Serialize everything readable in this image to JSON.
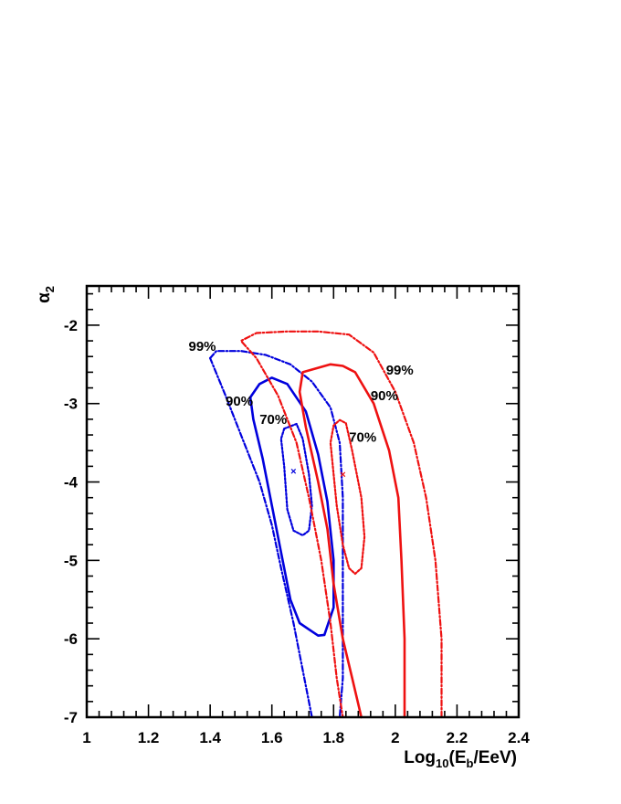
{
  "chart_data": {
    "type": "line",
    "title": "",
    "xlabel": {
      "main": "Log",
      "sub": "10",
      "open": "(E",
      "sub2": "b",
      "close": "/EeV)"
    },
    "ylabel": {
      "main": "α",
      "sub": "2"
    },
    "xlim": [
      1.0,
      2.4
    ],
    "ylim": [
      -7.0,
      -1.5
    ],
    "xticks": [
      1.0,
      1.2,
      1.4,
      1.6,
      1.8,
      2.0,
      2.2,
      2.4
    ],
    "xtick_labels": [
      "1",
      "1.2",
      "1.4",
      "1.6",
      "1.8",
      "2",
      "2.2",
      "2.4"
    ],
    "yticks": [
      -7,
      -6,
      -5,
      -4,
      -3,
      -2
    ],
    "ytick_labels": [
      "-7",
      "-6",
      "-5",
      "-4",
      "-3",
      "-2"
    ],
    "grid": false,
    "colors": {
      "blue": "#0000dd",
      "red": "#ee1111"
    },
    "series": [
      {
        "color": "blue",
        "style": "dotted",
        "points": [
          [
            1.64,
            -3.32
          ],
          [
            1.68,
            -3.26
          ],
          [
            1.7,
            -3.45
          ],
          [
            1.72,
            -3.9
          ],
          [
            1.73,
            -4.3
          ],
          [
            1.72,
            -4.62
          ],
          [
            1.7,
            -4.68
          ],
          [
            1.67,
            -4.62
          ],
          [
            1.65,
            -4.35
          ],
          [
            1.64,
            -3.8
          ],
          [
            1.63,
            -3.45
          ],
          [
            1.64,
            -3.32
          ]
        ]
      },
      {
        "color": "blue",
        "style": "solid",
        "points": [
          [
            1.53,
            -2.92
          ],
          [
            1.56,
            -2.75
          ],
          [
            1.6,
            -2.67
          ],
          [
            1.65,
            -2.75
          ],
          [
            1.71,
            -3.1
          ],
          [
            1.75,
            -3.65
          ],
          [
            1.78,
            -4.25
          ],
          [
            1.8,
            -5.0
          ],
          [
            1.8,
            -5.6
          ],
          [
            1.77,
            -5.95
          ],
          [
            1.75,
            -5.96
          ],
          [
            1.72,
            -5.88
          ],
          [
            1.69,
            -5.8
          ],
          [
            1.66,
            -5.5
          ],
          [
            1.63,
            -4.9
          ],
          [
            1.6,
            -4.3
          ],
          [
            1.57,
            -3.7
          ],
          [
            1.54,
            -3.2
          ],
          [
            1.53,
            -2.92
          ]
        ]
      },
      {
        "color": "blue",
        "style": "dashdot",
        "points": [
          [
            1.4,
            -2.42
          ],
          [
            1.42,
            -2.33
          ],
          [
            1.5,
            -2.33
          ],
          [
            1.58,
            -2.38
          ],
          [
            1.66,
            -2.5
          ],
          [
            1.73,
            -2.72
          ],
          [
            1.79,
            -3.05
          ],
          [
            1.82,
            -3.5
          ],
          [
            1.83,
            -4.2
          ],
          [
            1.83,
            -5.5
          ],
          [
            1.83,
            -6.5
          ],
          [
            1.82,
            -7.0
          ]
        ]
      },
      {
        "color": "blue",
        "style": "dashdot",
        "points": [
          [
            1.4,
            -2.42
          ],
          [
            1.45,
            -2.9
          ],
          [
            1.5,
            -3.4
          ],
          [
            1.56,
            -4.0
          ],
          [
            1.6,
            -4.55
          ],
          [
            1.63,
            -5.1
          ],
          [
            1.67,
            -5.8
          ],
          [
            1.7,
            -6.4
          ],
          [
            1.73,
            -7.0
          ]
        ]
      },
      {
        "color": "red",
        "style": "dotted",
        "points": [
          [
            1.8,
            -3.28
          ],
          [
            1.82,
            -3.21
          ],
          [
            1.84,
            -3.25
          ],
          [
            1.86,
            -3.6
          ],
          [
            1.89,
            -4.2
          ],
          [
            1.9,
            -4.7
          ],
          [
            1.89,
            -5.1
          ],
          [
            1.87,
            -5.17
          ],
          [
            1.85,
            -5.1
          ],
          [
            1.83,
            -4.8
          ],
          [
            1.81,
            -4.3
          ],
          [
            1.8,
            -3.9
          ],
          [
            1.79,
            -3.5
          ],
          [
            1.8,
            -3.28
          ]
        ]
      },
      {
        "color": "red",
        "style": "solid",
        "points": [
          [
            2.03,
            -7.0
          ],
          [
            2.03,
            -6.0
          ],
          [
            2.02,
            -5.0
          ],
          [
            2.01,
            -4.2
          ],
          [
            1.98,
            -3.6
          ],
          [
            1.93,
            -3.0
          ],
          [
            1.87,
            -2.6
          ],
          [
            1.83,
            -2.52
          ],
          [
            1.79,
            -2.5
          ],
          [
            1.7,
            -2.6
          ],
          [
            1.69,
            -2.85
          ],
          [
            1.71,
            -3.3
          ],
          [
            1.75,
            -4.0
          ],
          [
            1.78,
            -4.6
          ],
          [
            1.8,
            -5.3
          ],
          [
            1.83,
            -6.0
          ],
          [
            1.86,
            -6.5
          ],
          [
            1.89,
            -7.0
          ]
        ]
      },
      {
        "color": "red",
        "style": "dashdot",
        "points": [
          [
            2.15,
            -7.0
          ],
          [
            2.15,
            -6.0
          ],
          [
            2.13,
            -5.0
          ],
          [
            2.1,
            -4.2
          ],
          [
            2.06,
            -3.5
          ],
          [
            2.0,
            -2.85
          ],
          [
            1.93,
            -2.35
          ],
          [
            1.85,
            -2.12
          ],
          [
            1.75,
            -2.08
          ],
          [
            1.65,
            -2.08
          ],
          [
            1.55,
            -2.1
          ],
          [
            1.5,
            -2.2
          ],
          [
            1.55,
            -2.42
          ],
          [
            1.62,
            -2.9
          ],
          [
            1.68,
            -3.5
          ],
          [
            1.72,
            -4.2
          ],
          [
            1.76,
            -5.0
          ],
          [
            1.79,
            -5.8
          ],
          [
            1.81,
            -6.5
          ],
          [
            1.83,
            -7.0
          ]
        ]
      }
    ],
    "markers": [
      {
        "x": 1.67,
        "y": -3.86,
        "color": "blue",
        "symbol": "×"
      },
      {
        "x": 1.83,
        "y": -3.9,
        "color": "red",
        "symbol": "×"
      }
    ],
    "annotations": [
      {
        "text": "99%",
        "x": 1.33,
        "y": -2.27
      },
      {
        "text": "90%",
        "x": 1.45,
        "y": -2.97
      },
      {
        "text": "70%",
        "x": 1.56,
        "y": -3.2
      },
      {
        "text": "99%",
        "x": 1.97,
        "y": -2.57
      },
      {
        "text": "90%",
        "x": 1.92,
        "y": -2.9
      },
      {
        "text": "70%",
        "x": 1.85,
        "y": -3.43
      }
    ]
  }
}
